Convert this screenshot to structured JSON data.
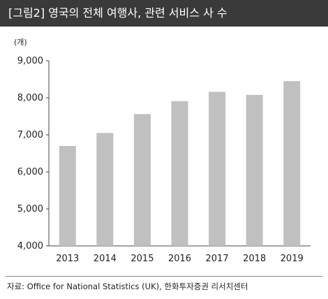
{
  "header": {
    "title": "[그림2] 영국의 전체 여행사, 관련 서비스 사 수"
  },
  "unit_label": "(개)",
  "source": "자료: Office for National Statistics (UK), 한화투자증권 리서치센터",
  "colors": {
    "header_bg": "#3a3a3a",
    "bar": "#c0c0c0",
    "axis": "#444444"
  },
  "chart_data": {
    "type": "bar",
    "categories": [
      "2013",
      "2014",
      "2015",
      "2016",
      "2017",
      "2018",
      "2019"
    ],
    "values": [
      6700,
      7050,
      7560,
      7910,
      8160,
      8080,
      8450
    ],
    "yticks": [
      "4,000",
      "5,000",
      "6,000",
      "7,000",
      "8,000",
      "9,000"
    ],
    "ylim": [
      4000,
      9000
    ],
    "title": "",
    "xlabel": "",
    "ylabel": "(개)",
    "grid": false,
    "legend": "none"
  }
}
